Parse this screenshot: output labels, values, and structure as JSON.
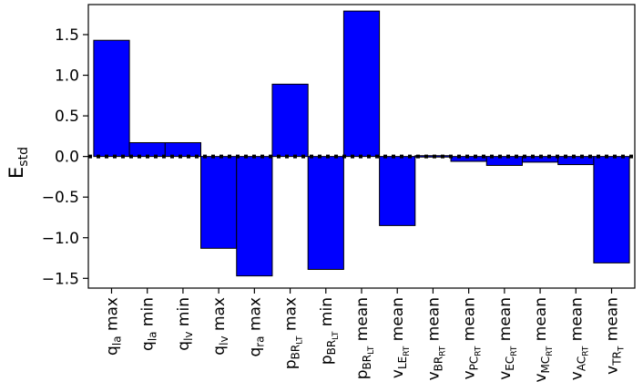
{
  "chart_data": {
    "type": "bar",
    "title": "",
    "xlabel": "",
    "ylabel": "E",
    "ylabel_sub": "std",
    "ylim": [
      -1.62,
      1.87
    ],
    "yticks": [
      -1.5,
      -1.0,
      -0.5,
      0.0,
      0.5,
      1.0,
      1.5
    ],
    "ytick_labels": [
      "−1.5",
      "−1.0",
      "−0.5",
      "0.0",
      "0.5",
      "1.0",
      "1.5"
    ],
    "grid": false,
    "reference_line": {
      "y": 0.0,
      "style": "dotted",
      "color": "#000000"
    },
    "bar_color": "#0000ff",
    "edge_color": "#000000",
    "categories": [
      {
        "base": "q",
        "sub": "la",
        "subsub": "",
        "suffix": " max"
      },
      {
        "base": "q",
        "sub": "la",
        "subsub": "",
        "suffix": " min"
      },
      {
        "base": "q",
        "sub": "lv",
        "subsub": "",
        "suffix": " min"
      },
      {
        "base": "q",
        "sub": "lv",
        "subsub": "",
        "suffix": " max"
      },
      {
        "base": "q",
        "sub": "ra",
        "subsub": "",
        "suffix": " max"
      },
      {
        "base": "p",
        "sub": "BR",
        "subsub": "LT",
        "suffix": " max"
      },
      {
        "base": "p",
        "sub": "BR",
        "subsub": "LT",
        "suffix": " min"
      },
      {
        "base": "p",
        "sub": "BR",
        "subsub": "LT",
        "suffix": " mean"
      },
      {
        "base": "v",
        "sub": "LE",
        "subsub": "RT",
        "suffix": " mean"
      },
      {
        "base": "v",
        "sub": "BR",
        "subsub": "RT",
        "suffix": " mean"
      },
      {
        "base": "v",
        "sub": "PC",
        "subsub": "RT",
        "suffix": " mean"
      },
      {
        "base": "v",
        "sub": "EC",
        "subsub": "RT",
        "suffix": " mean"
      },
      {
        "base": "v",
        "sub": "MC",
        "subsub": "RT",
        "suffix": " mean"
      },
      {
        "base": "v",
        "sub": "AC",
        "subsub": "RT",
        "suffix": " mean"
      },
      {
        "base": "v",
        "sub": "TR",
        "subsub": "T",
        "suffix": " mean"
      }
    ],
    "values": [
      1.43,
      0.17,
      0.17,
      -1.13,
      -1.47,
      0.89,
      -1.39,
      1.79,
      -0.85,
      0.01,
      -0.06,
      -0.11,
      -0.07,
      -0.1,
      -1.31
    ]
  }
}
